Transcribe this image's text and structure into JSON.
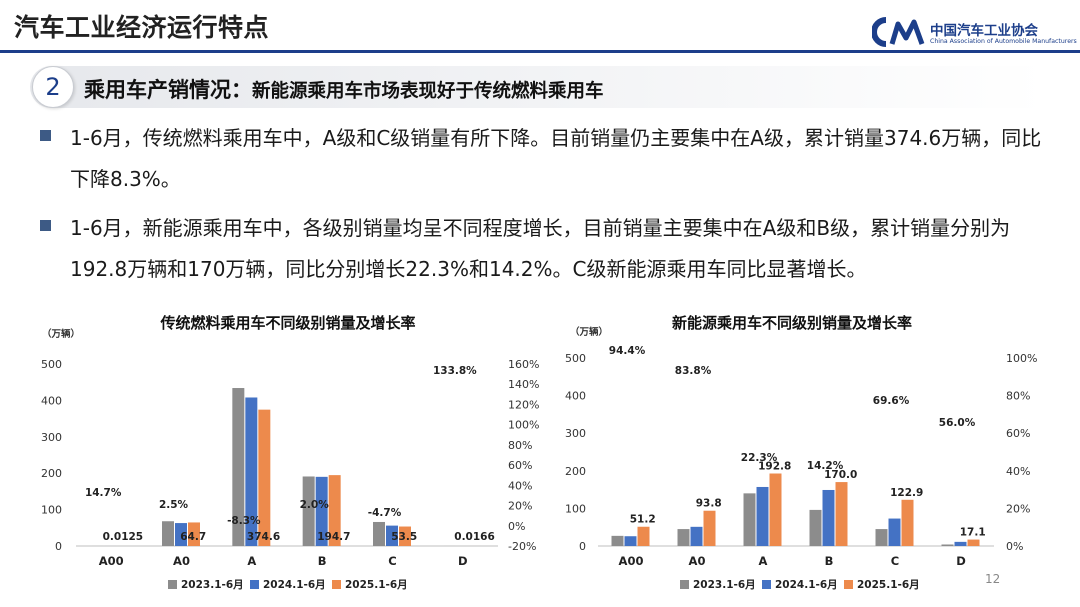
{
  "header": {
    "title": "汽车工业经济运行特点"
  },
  "logo": {
    "cn_name": "中国汽车工业协会",
    "en_name": "China Association of Automobile Manufacturers",
    "mark_text": "CAAM"
  },
  "section": {
    "number": "2",
    "title_main": "乘用车产销情况：",
    "title_sub": "新能源乘用车市场表现好于传统燃料乘用车"
  },
  "bullets": [
    "1-6月，传统燃料乘用车中，A级和C级销量有所下降。目前销量仍主要集中在A级，累计销量374.6万辆，同比下降8.3%。",
    "1-6月，新能源乘用车中，各级别销量均呈不同程度增长，目前销量主要集中在A级和B级，累计销量分别为192.8万辆和170万辆，同比分别增长22.3%和14.2%。C级新能源乘用车同比显著增长。"
  ],
  "page_number": "12",
  "colors": {
    "s2023": "#8c8c8c",
    "s2024": "#4472c4",
    "s2025": "#ed8a4c",
    "negative": "#c00000",
    "brand": "#1c3e8a"
  },
  "chart_data": [
    {
      "type": "bar",
      "title": "传统燃料乘用车不同级别销量及增长率",
      "unit": "（万辆）",
      "categories": [
        "A00",
        "A0",
        "A",
        "B",
        "C",
        "D"
      ],
      "series": [
        {
          "name": "2023.1-6月",
          "values": [
            0.02,
            68,
            434,
            191,
            66,
            0.02
          ]
        },
        {
          "name": "2024.1-6月",
          "values": [
            0.011,
            63,
            408,
            190,
            56,
            0.007
          ]
        },
        {
          "name": "2025.1-6月",
          "values": [
            0.0125,
            64.7,
            374.6,
            194.7,
            53.5,
            0.0166
          ]
        }
      ],
      "value_labels": [
        "0.0125",
        "64.7",
        "374.6",
        "194.7",
        "53.5",
        "0.0166"
      ],
      "growth_rate_pct": [
        14.7,
        2.5,
        -8.3,
        2.0,
        -4.7,
        133.8
      ],
      "growth_labels": [
        "14.7%",
        "2.5%",
        "-8.3%",
        "2.0%",
        "-4.7%",
        "133.8%"
      ],
      "ylim": [
        0,
        500
      ],
      "y_ticks": [
        "0",
        "100",
        "200",
        "300",
        "400",
        "500"
      ],
      "y2lim": [
        -20,
        160
      ],
      "y2_ticks": [
        "-20%",
        "0%",
        "20%",
        "40%",
        "60%",
        "80%",
        "100%",
        "120%",
        "140%",
        "160%"
      ],
      "legend": "bottom"
    },
    {
      "type": "bar",
      "title": "新能源乘用车不同级别销量及增长率",
      "unit": "（万辆）",
      "categories": [
        "A00",
        "A0",
        "A",
        "B",
        "C",
        "D"
      ],
      "series": [
        {
          "name": "2023.1-6月",
          "values": [
            27,
            45,
            140,
            96,
            45,
            4
          ]
        },
        {
          "name": "2024.1-6月",
          "values": [
            26,
            51,
            157,
            149,
            73,
            11
          ]
        },
        {
          "name": "2025.1-6月",
          "values": [
            51.2,
            93.8,
            192.8,
            170.0,
            122.9,
            17.1
          ]
        }
      ],
      "value_labels": [
        "51.2",
        "93.8",
        "192.8",
        "170.0",
        "122.9",
        "17.1"
      ],
      "growth_rate_pct": [
        94.4,
        83.8,
        22.3,
        14.2,
        69.6,
        56.0
      ],
      "growth_labels": [
        "94.4%",
        "83.8%",
        "22.3%",
        "14.2%",
        "69.6%",
        "56.0%"
      ],
      "ylim": [
        0,
        500
      ],
      "y_ticks": [
        "0",
        "100",
        "200",
        "300",
        "400",
        "500"
      ],
      "y2lim": [
        0,
        100
      ],
      "y2_ticks": [
        "0%",
        "20%",
        "40%",
        "60%",
        "80%",
        "100%"
      ],
      "legend": "bottom"
    }
  ]
}
